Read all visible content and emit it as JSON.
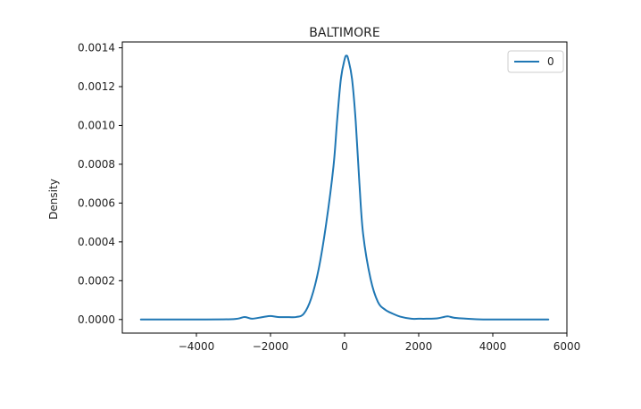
{
  "chart_data": {
    "type": "line",
    "title": "BALTIMORE",
    "xlabel": "",
    "ylabel": "Density",
    "xlim": [
      -6000,
      6000
    ],
    "ylim": [
      -7e-05,
      0.00143
    ],
    "xticks": [
      -4000,
      -2000,
      0,
      2000,
      4000,
      6000
    ],
    "xtick_labels": [
      "−4000",
      "−2000",
      "0",
      "2000",
      "4000",
      "6000"
    ],
    "yticks": [
      0.0,
      0.0002,
      0.0004,
      0.0006,
      0.0008,
      0.001,
      0.0012,
      0.0014
    ],
    "ytick_labels": [
      "0.0000",
      "0.0002",
      "0.0004",
      "0.0006",
      "0.0008",
      "0.0010",
      "0.0012",
      "0.0014"
    ],
    "grid": false,
    "legend": {
      "position": "top-right",
      "entries": [
        "0"
      ]
    },
    "series": [
      {
        "name": "0",
        "color": "#1f77b4",
        "x": [
          -5500,
          -4000,
          -3000,
          -2700,
          -2500,
          -2200,
          -2000,
          -1800,
          -1500,
          -1300,
          -1100,
          -900,
          -700,
          -500,
          -300,
          -200,
          -100,
          0,
          50,
          100,
          200,
          300,
          400,
          500,
          700,
          900,
          1100,
          1300,
          1500,
          1800,
          2000,
          2200,
          2500,
          2700,
          2800,
          3000,
          3500,
          4000,
          5500
        ],
        "y": [
          0.0,
          0.0,
          2e-06,
          1.3e-05,
          4e-06,
          1.3e-05,
          1.8e-05,
          1.3e-05,
          1.2e-05,
          1.3e-05,
          3e-05,
          0.00011,
          0.00026,
          0.00049,
          0.00079,
          0.00103,
          0.00124,
          0.00134,
          0.00136,
          0.00134,
          0.00124,
          0.00102,
          0.0007,
          0.00044,
          0.00021,
          9e-05,
          5e-05,
          3e-05,
          1.5e-05,
          4e-06,
          4e-06,
          4e-06,
          6e-06,
          1.4e-05,
          1.6e-05,
          8e-06,
          2e-06,
          0.0,
          0.0
        ]
      }
    ]
  }
}
